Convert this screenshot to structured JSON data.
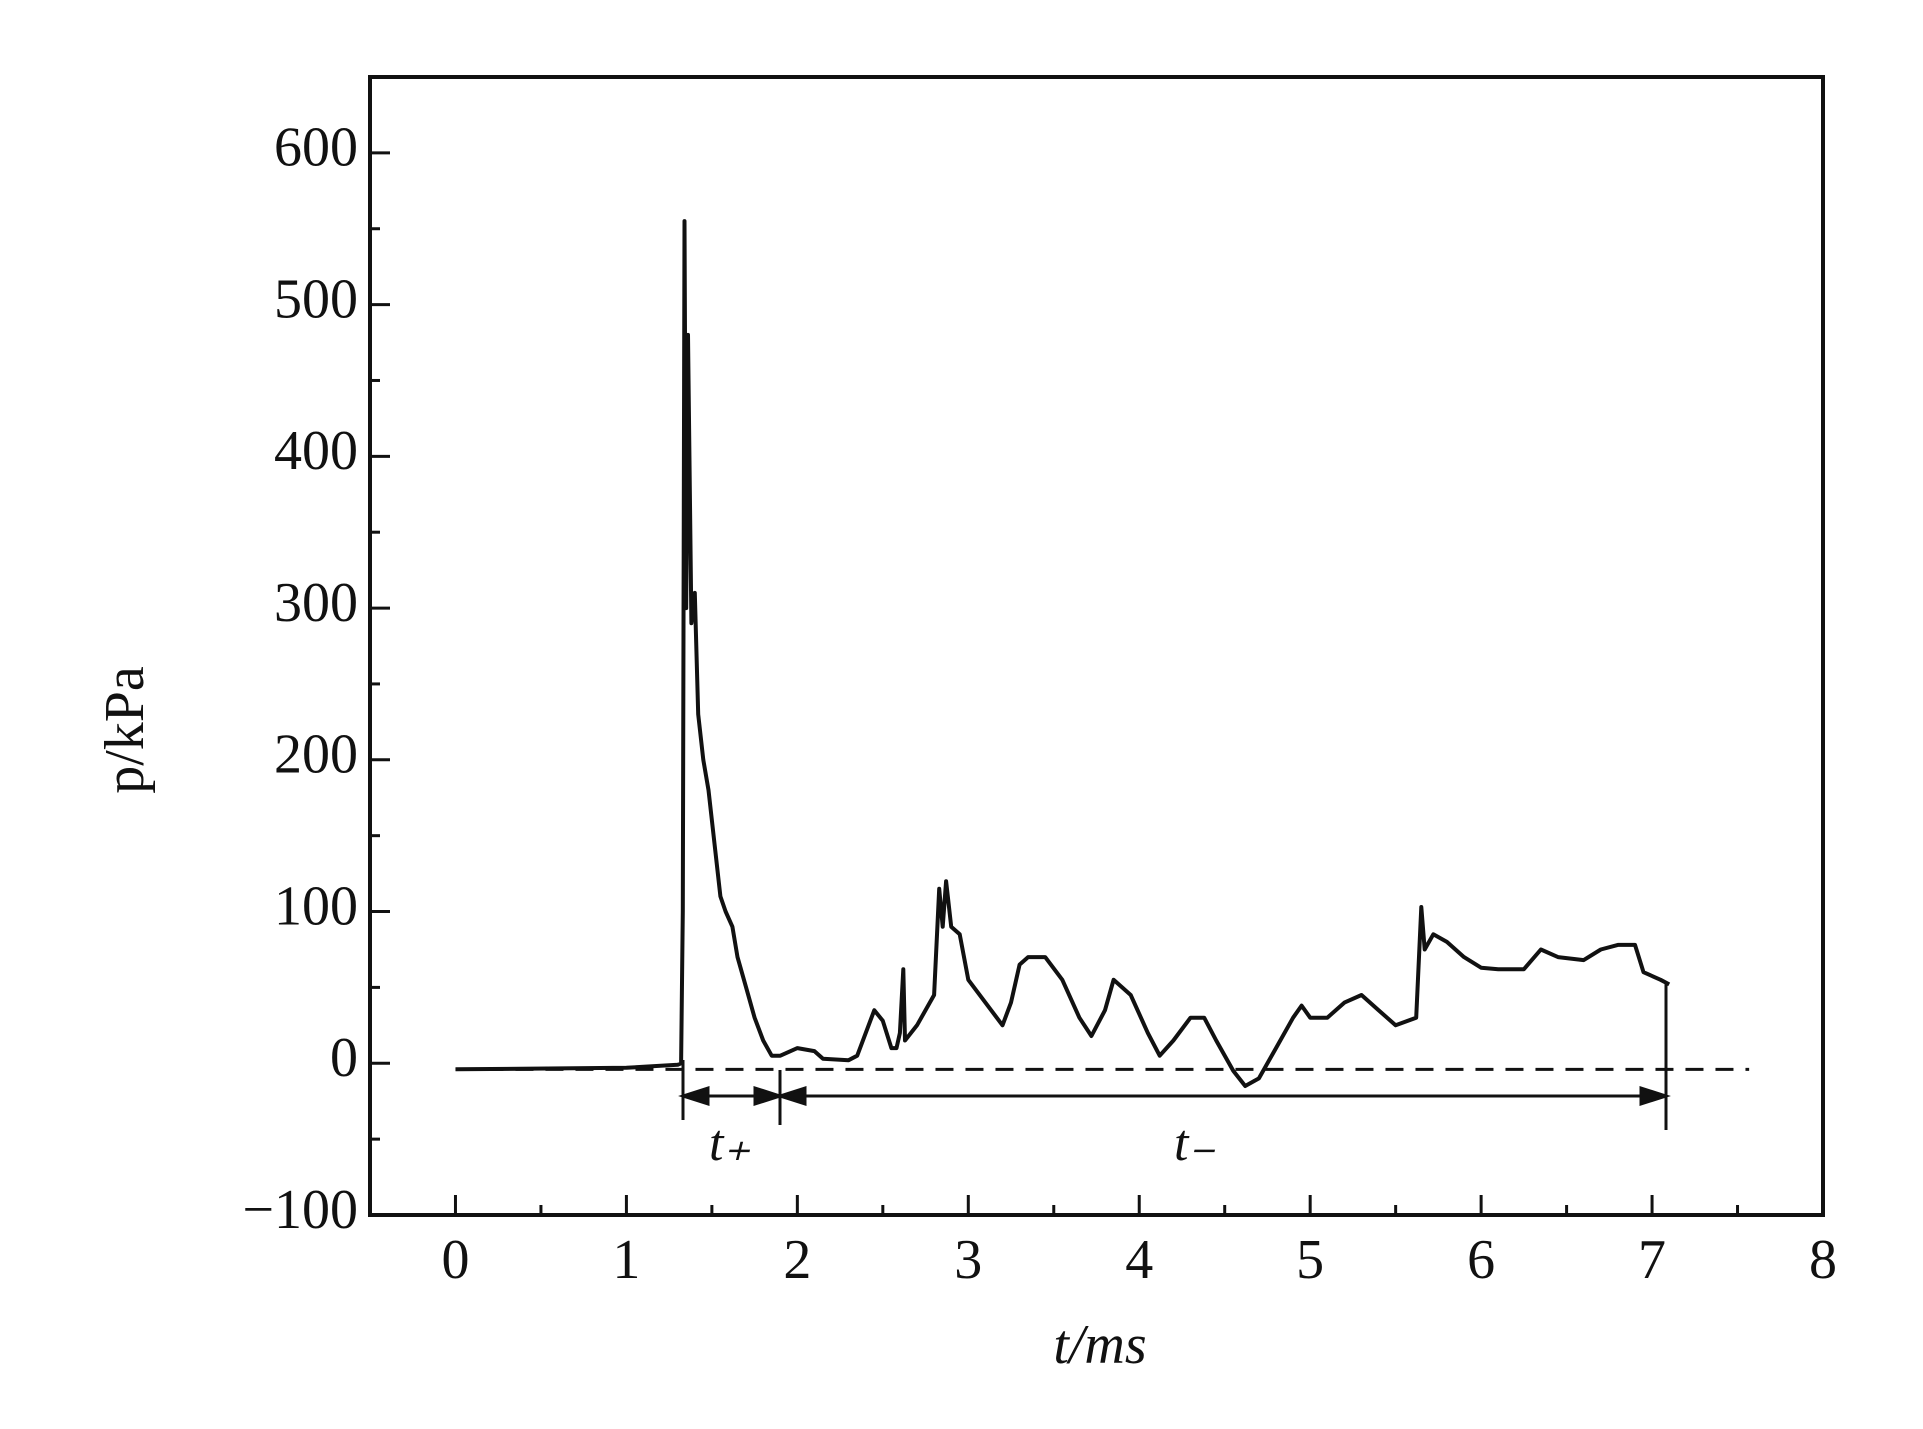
{
  "chart_data": {
    "type": "line",
    "xlabel": "t/ms",
    "ylabel": "p/kPa",
    "annotations": [
      "t₊",
      "t₋"
    ],
    "baseline": -4,
    "x": [
      0,
      1.0,
      1.3,
      1.32,
      1.33,
      1.34,
      1.35,
      1.36,
      1.38,
      1.4,
      1.42,
      1.45,
      1.48,
      1.52,
      1.55,
      1.58,
      1.62,
      1.65,
      1.7,
      1.75,
      1.8,
      1.85,
      1.9,
      2.0,
      2.1,
      2.15,
      2.3,
      2.35,
      2.45,
      2.5,
      2.55,
      2.58,
      2.6,
      2.62,
      2.63,
      2.7,
      2.8,
      2.83,
      2.85,
      2.87,
      2.9,
      2.95,
      3.0,
      3.1,
      3.2,
      3.25,
      3.3,
      3.35,
      3.45,
      3.55,
      3.65,
      3.72,
      3.8,
      3.85,
      3.95,
      4.05,
      4.12,
      4.2,
      4.3,
      4.38,
      4.45,
      4.55,
      4.62,
      4.7,
      4.8,
      4.9,
      4.95,
      5.0,
      5.1,
      5.2,
      5.3,
      5.4,
      5.5,
      5.62,
      5.65,
      5.67,
      5.72,
      5.8,
      5.9,
      6.0,
      6.1,
      6.25,
      6.35,
      6.45,
      6.6,
      6.7,
      6.8,
      6.9,
      6.95,
      7.05,
      7.1
    ],
    "series": [
      {
        "name": "p",
        "color": "#111111",
        "values": [
          -4,
          -3,
          -1,
          0,
          100,
          555,
          300,
          480,
          290,
          310,
          230,
          200,
          180,
          140,
          110,
          100,
          90,
          70,
          50,
          30,
          15,
          5,
          5,
          10,
          8,
          3,
          2,
          5,
          35,
          28,
          10,
          10,
          20,
          62,
          15,
          25,
          45,
          115,
          90,
          120,
          90,
          85,
          55,
          40,
          25,
          40,
          65,
          70,
          70,
          55,
          30,
          18,
          35,
          55,
          45,
          20,
          5,
          15,
          30,
          30,
          15,
          -5,
          -15,
          -10,
          10,
          30,
          38,
          30,
          30,
          40,
          45,
          35,
          25,
          30,
          103,
          75,
          85,
          80,
          70,
          63,
          62,
          62,
          75,
          70,
          68,
          75,
          78,
          78,
          60,
          55,
          52
        ]
      }
    ],
    "xlim": [
      -0.5,
      8
    ],
    "xticks": [
      0,
      1,
      2,
      3,
      4,
      5,
      6,
      7,
      8
    ],
    "ylim": [
      -100,
      650
    ],
    "yticks": [
      {
        "value": -100,
        "label": "−100"
      },
      0,
      100,
      200,
      300,
      400,
      500,
      600
    ],
    "grid": false
  }
}
